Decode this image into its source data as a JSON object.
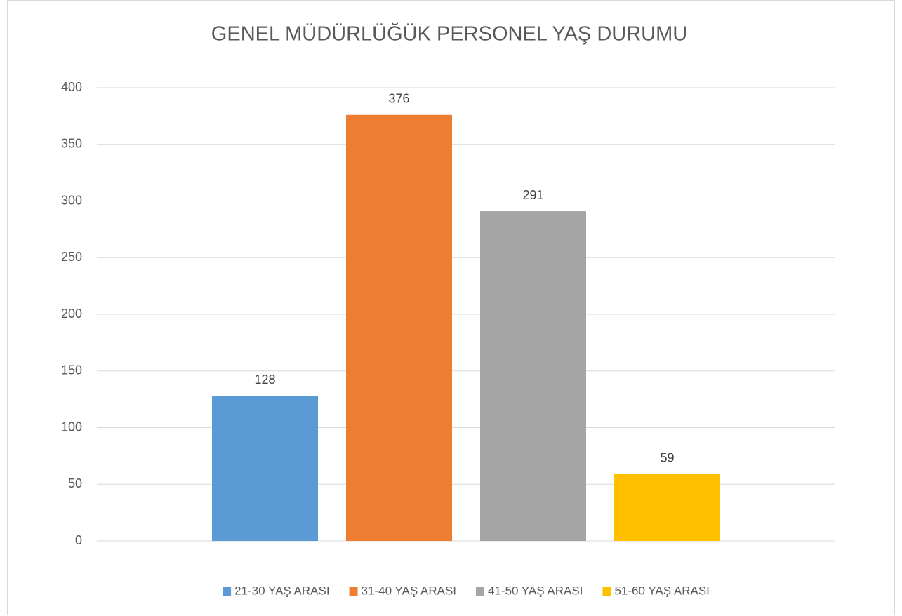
{
  "chart_data": {
    "type": "bar",
    "title": "GENEL MÜDÜRLÜĞÜK PERSONEL YAŞ DURUMU",
    "categories": [
      null
    ],
    "series": [
      {
        "name": "21-30 YAŞ ARASI",
        "color": "#5b9bd5",
        "values": [
          128
        ]
      },
      {
        "name": "31-40 YAŞ ARASI",
        "color": "#ed7d31",
        "values": [
          376
        ]
      },
      {
        "name": "41-50 YAŞ ARASI",
        "color": "#a5a5a5",
        "values": [
          291
        ]
      },
      {
        "name": "51-60 YAŞ ARASI",
        "color": "#ffc000",
        "values": [
          59
        ]
      }
    ],
    "ylim": [
      0,
      400
    ],
    "yticks": [
      0,
      50,
      100,
      150,
      200,
      250,
      300,
      350,
      400
    ],
    "grid": true,
    "legend": "bottom"
  }
}
